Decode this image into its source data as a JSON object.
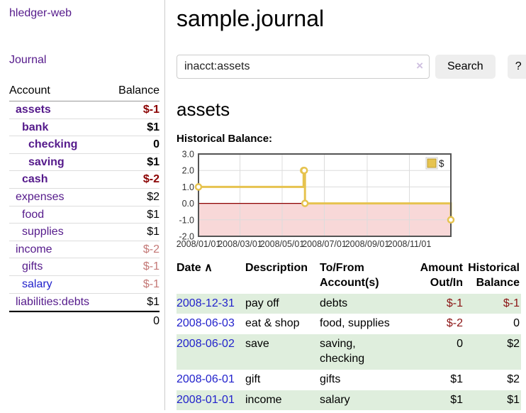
{
  "sidebar": {
    "app_title": "hledger-web",
    "journal_link": "Journal",
    "accounts_table": {
      "account_header": "Account",
      "balance_header": "Balance",
      "rows": [
        {
          "name": "assets",
          "depth": 1,
          "bold": true,
          "balance": "$-1",
          "tone": "neg-strong",
          "blue": false
        },
        {
          "name": "bank",
          "depth": 2,
          "bold": true,
          "balance": "$1",
          "tone": "",
          "blue": false
        },
        {
          "name": "checking",
          "depth": 3,
          "bold": true,
          "balance": "0",
          "tone": "",
          "blue": false
        },
        {
          "name": "saving",
          "depth": 3,
          "bold": true,
          "balance": "$1",
          "tone": "",
          "blue": false
        },
        {
          "name": "cash",
          "depth": 2,
          "bold": true,
          "balance": "$-2",
          "tone": "neg-strong",
          "blue": false
        },
        {
          "name": "expenses",
          "depth": 1,
          "bold": false,
          "balance": "$2",
          "tone": "",
          "blue": false
        },
        {
          "name": "food",
          "depth": 2,
          "bold": false,
          "balance": "$1",
          "tone": "",
          "blue": false
        },
        {
          "name": "supplies",
          "depth": 2,
          "bold": false,
          "balance": "$1",
          "tone": "",
          "blue": false
        },
        {
          "name": "income",
          "depth": 1,
          "bold": false,
          "balance": "$-2",
          "tone": "neg-dim",
          "blue": false
        },
        {
          "name": "gifts",
          "depth": 2,
          "bold": false,
          "balance": "$-1",
          "tone": "neg-dim",
          "blue": false
        },
        {
          "name": "salary",
          "depth": 2,
          "bold": false,
          "balance": "$-1",
          "tone": "neg-dim",
          "blue": true
        },
        {
          "name": "liabilities:debts",
          "depth": 1,
          "bold": false,
          "balance": "$1",
          "tone": "",
          "blue": false
        }
      ],
      "total": "0"
    }
  },
  "main": {
    "title": "sample.journal",
    "search": {
      "value": "inacct:assets",
      "clear_icon": "×",
      "search_button": "Search",
      "help_button": "?"
    },
    "account_heading": "assets",
    "chart_label": "Historical Balance:"
  },
  "chart_data": {
    "type": "line",
    "step": true,
    "title": "Historical Balance",
    "series": [
      {
        "name": "$",
        "color": "#e6c34f",
        "points": [
          [
            "2008-01-01",
            1
          ],
          [
            "2008-06-01",
            2
          ],
          [
            "2008-06-02",
            2
          ],
          [
            "2008-06-03",
            0
          ],
          [
            "2008-12-31",
            -1
          ]
        ]
      }
    ],
    "x_range": [
      "2008-01-01",
      "2008-12-31"
    ],
    "x_ticks": [
      {
        "date": "2008-01-01",
        "label": "2008/01/01"
      },
      {
        "date": "2008-03-01",
        "label": "2008/03/01"
      },
      {
        "date": "2008-05-01",
        "label": "2008/05/01"
      },
      {
        "date": "2008-07-01",
        "label": "2008/07/01"
      },
      {
        "date": "2008-09-01",
        "label": "2008/09/01"
      },
      {
        "date": "2008-11-01",
        "label": "2008/11/01"
      }
    ],
    "y_ticks": [
      "3.0",
      "2.0",
      "1.0",
      "0.0",
      "-1.0",
      "-2.0"
    ],
    "ylim": [
      -2,
      3
    ],
    "grid": true,
    "legend": {
      "label": "$",
      "position": "top-right"
    },
    "negative_region_color": "#f8d8d8",
    "zero_line_color": "#8b0000"
  },
  "register_table": {
    "headers": {
      "date": "Date",
      "sort_arrow": "∧",
      "description": "Description",
      "accounts": "To/From Account(s)",
      "amount": "Amount Out/In",
      "balance": "Historical Balance"
    },
    "rows": [
      {
        "date": "2008-12-31",
        "description": "pay off",
        "accounts_lines": [
          "debts"
        ],
        "amount": "$-1",
        "amount_neg": true,
        "balance": "$-1",
        "balance_neg": true,
        "stripe": true
      },
      {
        "date": "2008-06-03",
        "description": "eat & shop",
        "accounts_lines": [
          "food, supplies"
        ],
        "amount": "$-2",
        "amount_neg": true,
        "balance": "0",
        "balance_neg": false,
        "stripe": false
      },
      {
        "date": "2008-06-02",
        "description": "save",
        "accounts_lines": [
          "saving,",
          "checking"
        ],
        "amount": "0",
        "amount_neg": false,
        "balance": "$2",
        "balance_neg": false,
        "stripe": true
      },
      {
        "date": "2008-06-01",
        "description": "gift",
        "accounts_lines": [
          "gifts"
        ],
        "amount": "$1",
        "amount_neg": false,
        "balance": "$2",
        "balance_neg": false,
        "stripe": false
      },
      {
        "date": "2008-01-01",
        "description": "income",
        "accounts_lines": [
          "salary"
        ],
        "amount": "$1",
        "amount_neg": false,
        "balance": "$1",
        "balance_neg": false,
        "stripe": true
      }
    ]
  }
}
